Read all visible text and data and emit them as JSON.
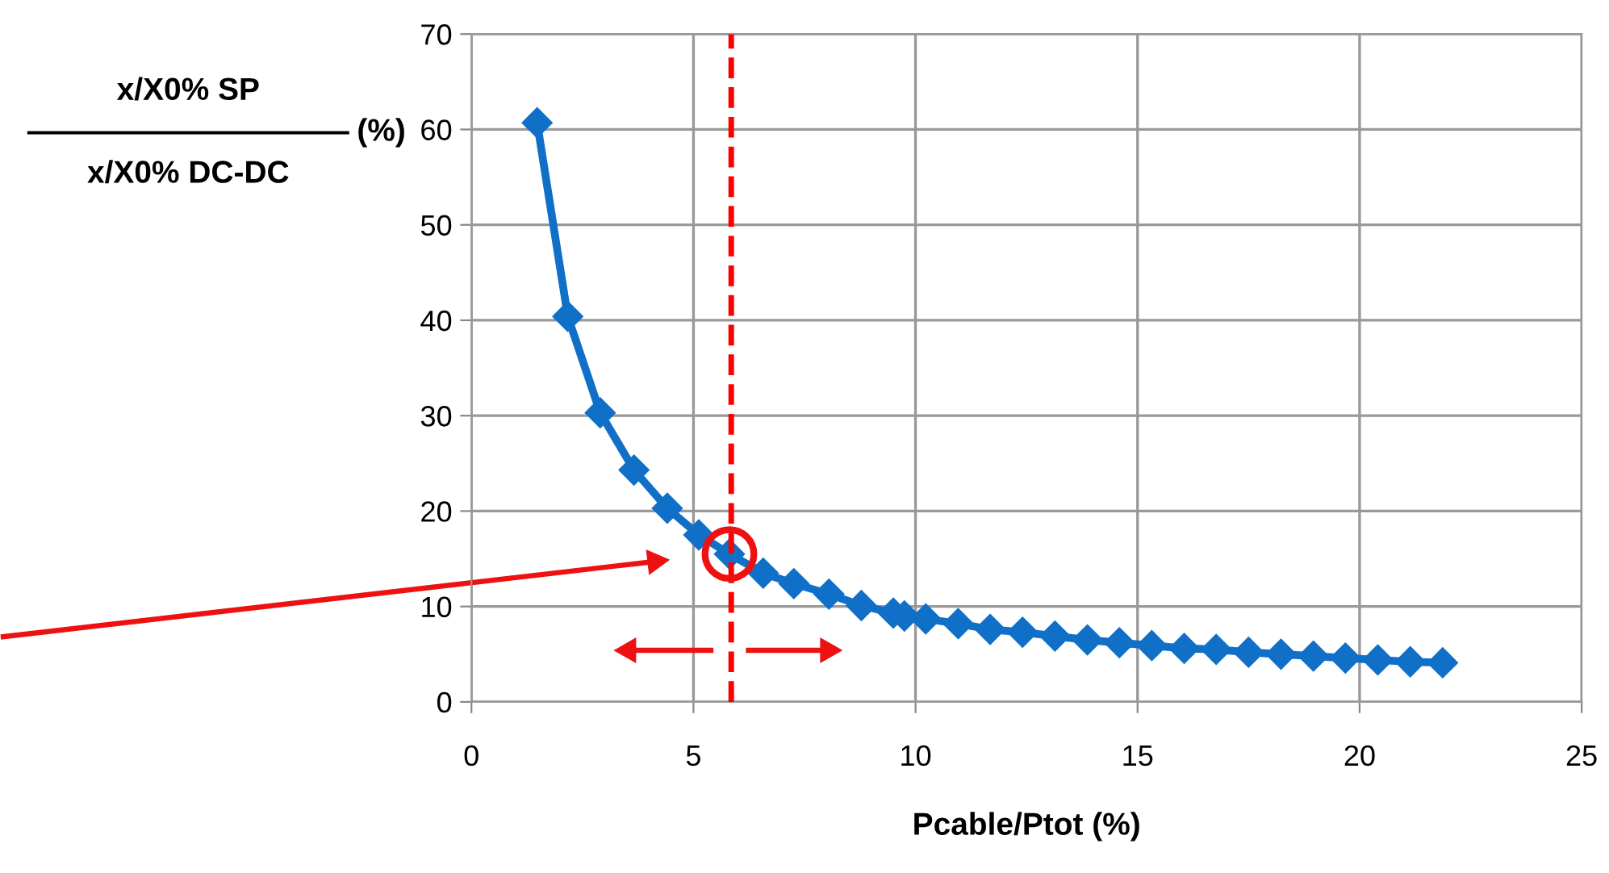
{
  "chart_data": {
    "type": "line",
    "xlabel": "Pcable/Ptot (%)",
    "ylabel": "x/X0% SP\nx/X0% DC-DC\n(%)",
    "x": [
      1.48,
      2.17,
      2.9,
      3.66,
      4.41,
      5.12,
      5.81,
      6.57,
      7.26,
      8.05,
      8.78,
      9.5,
      9.75,
      10.23,
      10.96,
      11.68,
      12.41,
      13.14,
      13.87,
      14.59,
      15.32,
      16.05,
      16.77,
      17.5,
      18.23,
      18.96,
      19.68,
      20.41,
      21.14,
      21.87
    ],
    "series": [
      {
        "color": "#1070c8",
        "values": [
          60.7,
          40.4,
          30.3,
          24.3,
          20.3,
          17.5,
          15.5,
          13.5,
          12.4,
          11.3,
          10.1,
          9.3,
          9.0,
          8.7,
          8.2,
          7.6,
          7.3,
          6.9,
          6.5,
          6.2,
          5.9,
          5.6,
          5.5,
          5.2,
          5.0,
          4.8,
          4.6,
          4.4,
          4.2,
          4.1
        ]
      }
    ],
    "xlim": [
      0,
      25
    ],
    "ylim": [
      0,
      70
    ],
    "xticks": [
      0,
      5,
      10,
      15,
      20,
      25
    ],
    "yticks": [
      0,
      10,
      20,
      30,
      40,
      50,
      60,
      70
    ],
    "ref_lines": [
      {
        "axis": "x",
        "value": 5.85,
        "color": "#ff0000",
        "line_style": "dashed"
      }
    ],
    "grid": true,
    "marker": "diamond",
    "line_style": "solid",
    "legend": false
  }
}
